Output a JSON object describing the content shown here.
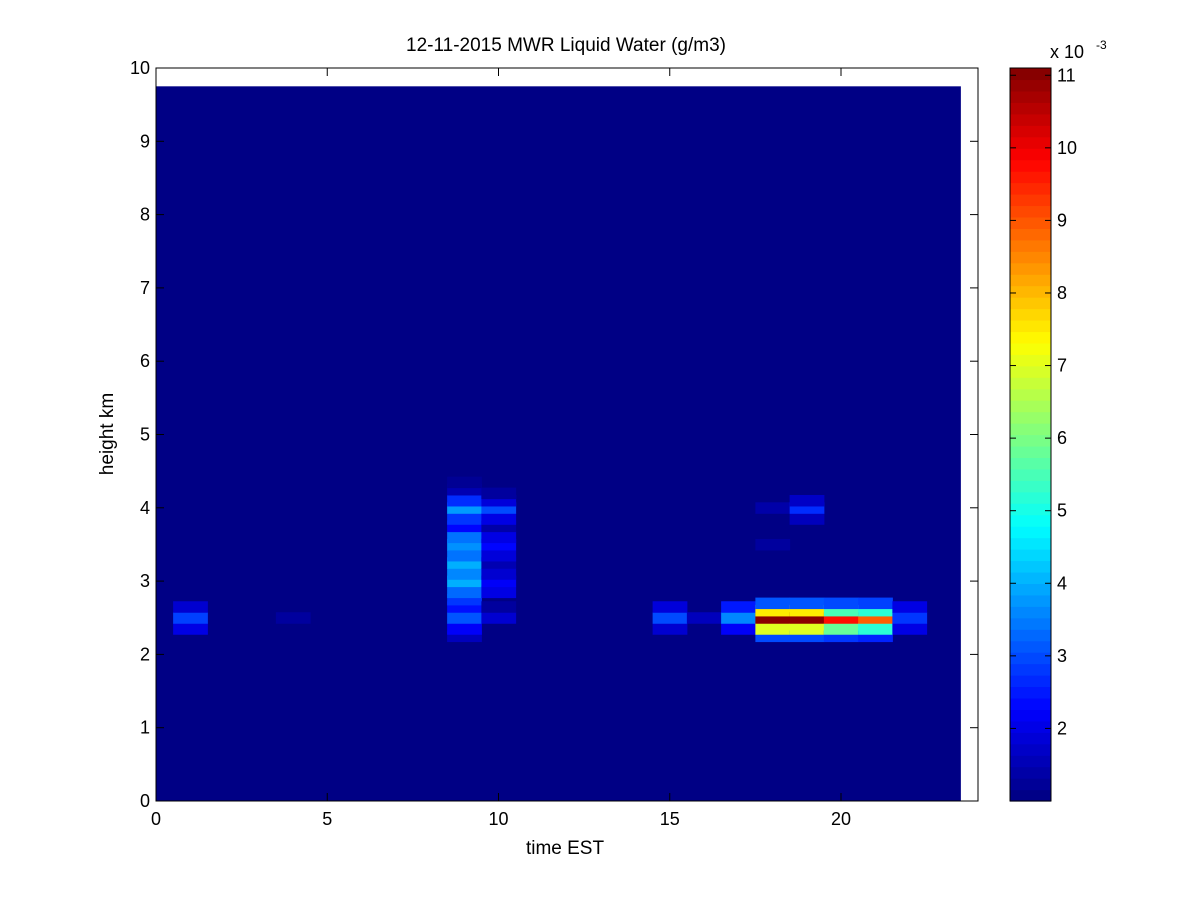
{
  "chart_data": {
    "type": "heatmap",
    "title": "12-11-2015 MWR Liquid Water (g/m3)",
    "xlabel": "time EST",
    "ylabel": "height km",
    "xlim": [
      0,
      24
    ],
    "ylim": [
      0,
      10
    ],
    "x_ticks": [
      "0",
      "5",
      "10",
      "15",
      "20"
    ],
    "y_ticks": [
      "0",
      "1",
      "2",
      "3",
      "4",
      "5",
      "6",
      "7",
      "8",
      "9",
      "10"
    ],
    "data_extent": {
      "x_end": 23.5,
      "y_top": 9.75
    },
    "colorbar": {
      "colormap": "jet",
      "min": 0.001,
      "max": 0.0111,
      "tick_labels": [
        "2",
        "3",
        "4",
        "5",
        "6",
        "7",
        "8",
        "9",
        "10",
        "11"
      ],
      "tick_values": [
        2,
        3,
        4,
        5,
        6,
        7,
        8,
        9,
        10,
        11
      ],
      "exponent_base": "x 10",
      "exponent_power": "-3"
    },
    "background_value": 0.00105,
    "cells": [
      {
        "t": 1,
        "h": 2.35,
        "v": 0.002
      },
      {
        "t": 1,
        "h": 2.5,
        "v": 0.0029
      },
      {
        "t": 1,
        "h": 2.65,
        "v": 0.0018
      },
      {
        "t": 4,
        "h": 2.5,
        "v": 0.0013
      },
      {
        "t": 9,
        "h": 2.25,
        "v": 0.0016
      },
      {
        "t": 9,
        "h": 2.35,
        "v": 0.0022
      },
      {
        "t": 9,
        "h": 2.5,
        "v": 0.0031
      },
      {
        "t": 9,
        "h": 2.65,
        "v": 0.0024
      },
      {
        "t": 9,
        "h": 2.75,
        "v": 0.0028
      },
      {
        "t": 9,
        "h": 2.85,
        "v": 0.0033
      },
      {
        "t": 9,
        "h": 3.0,
        "v": 0.004
      },
      {
        "t": 9,
        "h": 3.1,
        "v": 0.0036
      },
      {
        "t": 9,
        "h": 3.25,
        "v": 0.004
      },
      {
        "t": 9,
        "h": 3.35,
        "v": 0.0034
      },
      {
        "t": 9,
        "h": 3.5,
        "v": 0.0037
      },
      {
        "t": 9,
        "h": 3.6,
        "v": 0.0034
      },
      {
        "t": 9,
        "h": 3.75,
        "v": 0.0023
      },
      {
        "t": 9,
        "h": 3.85,
        "v": 0.0028
      },
      {
        "t": 9,
        "h": 4.0,
        "v": 0.0038
      },
      {
        "t": 9,
        "h": 4.1,
        "v": 0.0027
      },
      {
        "t": 9,
        "h": 4.25,
        "v": 0.0015
      },
      {
        "t": 9,
        "h": 4.35,
        "v": 0.0012
      },
      {
        "t": 10,
        "h": 2.5,
        "v": 0.0018
      },
      {
        "t": 10,
        "h": 2.65,
        "v": 0.0013
      },
      {
        "t": 10,
        "h": 2.85,
        "v": 0.002
      },
      {
        "t": 10,
        "h": 3.0,
        "v": 0.0022
      },
      {
        "t": 10,
        "h": 3.1,
        "v": 0.0018
      },
      {
        "t": 10,
        "h": 3.25,
        "v": 0.0015
      },
      {
        "t": 10,
        "h": 3.35,
        "v": 0.0019
      },
      {
        "t": 10,
        "h": 3.5,
        "v": 0.0023
      },
      {
        "t": 10,
        "h": 3.6,
        "v": 0.002
      },
      {
        "t": 10,
        "h": 3.75,
        "v": 0.0014
      },
      {
        "t": 10,
        "h": 3.85,
        "v": 0.002
      },
      {
        "t": 10,
        "h": 4.0,
        "v": 0.003
      },
      {
        "t": 10,
        "h": 4.1,
        "v": 0.0019
      },
      {
        "t": 10,
        "h": 4.2,
        "v": 0.0013
      },
      {
        "t": 15,
        "h": 2.35,
        "v": 0.0018
      },
      {
        "t": 15,
        "h": 2.5,
        "v": 0.003
      },
      {
        "t": 15,
        "h": 2.65,
        "v": 0.0019
      },
      {
        "t": 16,
        "h": 2.5,
        "v": 0.0016
      },
      {
        "t": 17,
        "h": 2.35,
        "v": 0.0022
      },
      {
        "t": 17,
        "h": 2.5,
        "v": 0.0036
      },
      {
        "t": 17,
        "h": 2.65,
        "v": 0.0025
      },
      {
        "t": 18,
        "h": 2.25,
        "v": 0.003
      },
      {
        "t": 18,
        "h": 2.35,
        "v": 0.007
      },
      {
        "t": 18,
        "h": 2.5,
        "v": 0.011
      },
      {
        "t": 18,
        "h": 2.6,
        "v": 0.0075
      },
      {
        "t": 18,
        "h": 2.7,
        "v": 0.0031
      },
      {
        "t": 18,
        "h": 3.5,
        "v": 0.0013
      },
      {
        "t": 18,
        "h": 4.0,
        "v": 0.0014
      },
      {
        "t": 19,
        "h": 2.25,
        "v": 0.003
      },
      {
        "t": 19,
        "h": 2.35,
        "v": 0.007
      },
      {
        "t": 19,
        "h": 2.5,
        "v": 0.011
      },
      {
        "t": 19,
        "h": 2.6,
        "v": 0.0075
      },
      {
        "t": 19,
        "h": 2.7,
        "v": 0.0031
      },
      {
        "t": 19,
        "h": 3.85,
        "v": 0.0016
      },
      {
        "t": 19,
        "h": 4.0,
        "v": 0.0027
      },
      {
        "t": 19,
        "h": 4.1,
        "v": 0.0017
      },
      {
        "t": 20,
        "h": 2.25,
        "v": 0.0028
      },
      {
        "t": 20,
        "h": 2.35,
        "v": 0.0058
      },
      {
        "t": 20,
        "h": 2.5,
        "v": 0.0097
      },
      {
        "t": 20,
        "h": 2.6,
        "v": 0.0055
      },
      {
        "t": 20,
        "h": 2.7,
        "v": 0.003
      },
      {
        "t": 21,
        "h": 2.25,
        "v": 0.0026
      },
      {
        "t": 21,
        "h": 2.35,
        "v": 0.0052
      },
      {
        "t": 21,
        "h": 2.5,
        "v": 0.0089
      },
      {
        "t": 21,
        "h": 2.6,
        "v": 0.0052
      },
      {
        "t": 21,
        "h": 2.7,
        "v": 0.0029
      },
      {
        "t": 22,
        "h": 2.35,
        "v": 0.002
      },
      {
        "t": 22,
        "h": 2.5,
        "v": 0.0028
      },
      {
        "t": 22,
        "h": 2.65,
        "v": 0.002
      }
    ]
  }
}
